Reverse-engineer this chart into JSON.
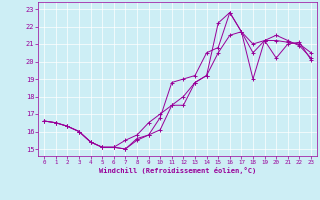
{
  "xlabel": "Windchill (Refroidissement éolien,°C)",
  "bg_color": "#cdeef5",
  "line_color": "#990099",
  "grid_color": "#ffffff",
  "xlim": [
    -0.5,
    23.5
  ],
  "ylim": [
    14.6,
    23.4
  ],
  "xticks": [
    0,
    1,
    2,
    3,
    4,
    5,
    6,
    7,
    8,
    9,
    10,
    11,
    12,
    13,
    14,
    15,
    16,
    17,
    18,
    19,
    20,
    21,
    22,
    23
  ],
  "yticks": [
    15,
    16,
    17,
    18,
    19,
    20,
    21,
    22,
    23
  ],
  "line1_x": [
    0,
    1,
    2,
    3,
    4,
    5,
    6,
    7,
    8,
    9,
    10,
    11,
    12,
    13,
    14,
    15,
    16,
    17,
    18,
    19,
    20,
    21,
    22,
    23
  ],
  "line1_y": [
    16.6,
    16.5,
    16.3,
    16.0,
    15.4,
    15.1,
    15.1,
    15.0,
    15.6,
    15.8,
    16.1,
    17.5,
    17.5,
    18.8,
    19.2,
    22.2,
    22.8,
    21.7,
    20.5,
    21.2,
    20.2,
    21.0,
    21.1,
    20.1
  ],
  "line2_x": [
    0,
    1,
    2,
    3,
    4,
    5,
    6,
    7,
    8,
    9,
    10,
    11,
    12,
    13,
    14,
    15,
    16,
    17,
    18,
    19,
    20,
    21,
    22,
    23
  ],
  "line2_y": [
    16.6,
    16.5,
    16.3,
    16.0,
    15.4,
    15.1,
    15.1,
    15.0,
    15.5,
    15.8,
    16.8,
    18.8,
    19.0,
    19.2,
    20.5,
    20.8,
    22.8,
    21.7,
    19.0,
    21.2,
    21.2,
    21.1,
    21.0,
    20.5
  ],
  "line3_x": [
    0,
    1,
    2,
    3,
    4,
    5,
    6,
    7,
    8,
    9,
    10,
    11,
    12,
    13,
    14,
    15,
    16,
    17,
    18,
    19,
    20,
    21,
    22,
    23
  ],
  "line3_y": [
    16.6,
    16.5,
    16.3,
    16.0,
    15.4,
    15.1,
    15.1,
    15.5,
    15.8,
    16.5,
    17.0,
    17.5,
    18.0,
    18.8,
    19.2,
    20.5,
    21.5,
    21.7,
    21.0,
    21.2,
    21.5,
    21.2,
    20.9,
    20.2
  ]
}
